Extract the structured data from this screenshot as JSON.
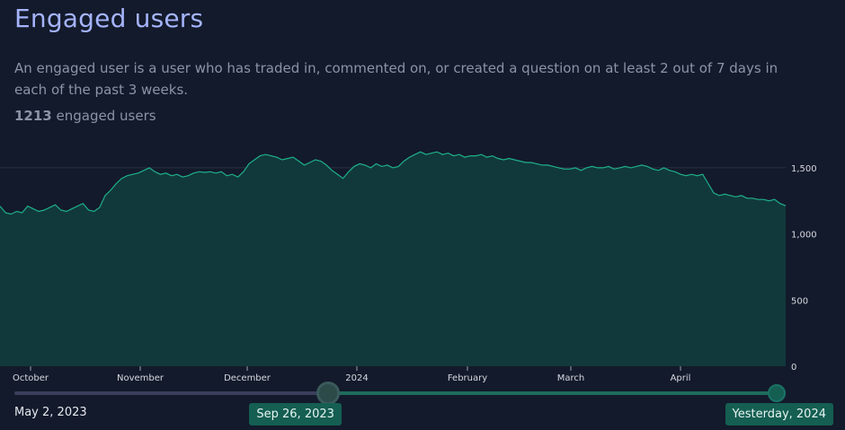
{
  "header": {
    "title": "Engaged users",
    "description": "An engaged user is a user who has traded in, commented on, or created a question on at least 2 out of 7 days in each of the past 3 weeks.",
    "count_value": "1213",
    "count_label": "engaged users"
  },
  "colors": {
    "area_fill": "#11393b",
    "line": "#1fb08a",
    "grid": "#2a3040",
    "slider_active": "#1e6b5c",
    "badge": "#155e52"
  },
  "chart_data": {
    "type": "area",
    "x_tick_labels": [
      "October",
      "November",
      "December",
      "2024",
      "February",
      "March",
      "April"
    ],
    "y_tick_labels": [
      "0",
      "500",
      "1,000",
      "1,500"
    ],
    "ylim": [
      0,
      1750
    ],
    "grid": true,
    "series": [
      {
        "values": [
          1210,
          1160,
          1150,
          1170,
          1160,
          1210,
          1190,
          1170,
          1180,
          1200,
          1220,
          1180,
          1170,
          1190,
          1210,
          1230,
          1180,
          1170,
          1200,
          1290,
          1330,
          1380,
          1420,
          1440,
          1450,
          1460,
          1480,
          1500,
          1470,
          1450,
          1460,
          1440,
          1450,
          1430,
          1440,
          1460,
          1470,
          1465,
          1470,
          1460,
          1470,
          1440,
          1450,
          1430,
          1470,
          1530,
          1560,
          1590,
          1600,
          1590,
          1580,
          1560,
          1570,
          1580,
          1550,
          1520,
          1540,
          1560,
          1550,
          1520,
          1480,
          1450,
          1420,
          1470,
          1510,
          1530,
          1520,
          1500,
          1530,
          1510,
          1520,
          1500,
          1510,
          1550,
          1580,
          1600,
          1620,
          1600,
          1610,
          1620,
          1600,
          1610,
          1590,
          1600,
          1580,
          1590,
          1590,
          1600,
          1580,
          1590,
          1570,
          1560,
          1570,
          1560,
          1550,
          1540,
          1540,
          1530,
          1520,
          1520,
          1510,
          1500,
          1490,
          1490,
          1500,
          1480,
          1500,
          1510,
          1500,
          1500,
          1510,
          1490,
          1500,
          1510,
          1500,
          1510,
          1520,
          1510,
          1490,
          1480,
          1500,
          1480,
          1470,
          1450,
          1440,
          1450,
          1440,
          1450,
          1380,
          1310,
          1290,
          1300,
          1290,
          1280,
          1290,
          1270,
          1270,
          1260,
          1260,
          1250,
          1260,
          1230,
          1213
        ]
      }
    ]
  },
  "range": {
    "min_label": "May 2, 2023",
    "start_label": "Sep 26, 2023",
    "end_label": "Yesterday, 2024",
    "start_fraction": 0.412,
    "end_fraction": 1.0
  }
}
